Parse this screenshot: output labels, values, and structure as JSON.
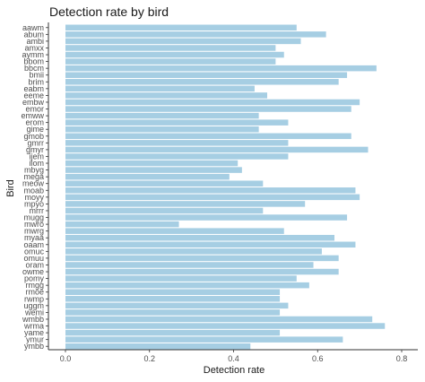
{
  "chart_data": {
    "type": "bar",
    "orientation": "horizontal",
    "title": "Detection rate by bird",
    "xlabel": "Detection rate",
    "ylabel": "Bird",
    "xlim": [
      0,
      0.8
    ],
    "xticks": [
      "0.0",
      "0.2",
      "0.4",
      "0.6",
      "0.8"
    ],
    "grid": false,
    "bar_color": "#a6cee3",
    "categories": [
      "aawm",
      "abum",
      "ambi",
      "amxx",
      "aymm",
      "bbom",
      "bbcm",
      "bmii",
      "brim",
      "eabm",
      "eeme",
      "embw",
      "emor",
      "emww",
      "erom",
      "gime",
      "gmob",
      "gmrr",
      "gmyr",
      "ijem",
      "ilom",
      "mbyg",
      "mega",
      "meow",
      "moab",
      "moyy",
      "mpyo",
      "mrrr",
      "mugg",
      "mwro",
      "mwrg",
      "myaa",
      "oaam",
      "omuc",
      "omuu",
      "oram",
      "owme",
      "pomy",
      "rmgg",
      "rmoe",
      "rwmp",
      "uggm",
      "wemi",
      "wmbb",
      "wrma",
      "yame",
      "ymur",
      "ymbb"
    ],
    "values": [
      0.55,
      0.62,
      0.56,
      0.5,
      0.52,
      0.5,
      0.74,
      0.67,
      0.65,
      0.45,
      0.48,
      0.7,
      0.68,
      0.46,
      0.53,
      0.46,
      0.68,
      0.53,
      0.72,
      0.53,
      0.41,
      0.42,
      0.39,
      0.47,
      0.69,
      0.7,
      0.57,
      0.47,
      0.67,
      0.27,
      0.52,
      0.64,
      0.69,
      0.61,
      0.65,
      0.59,
      0.65,
      0.55,
      0.58,
      0.51,
      0.51,
      0.53,
      0.51,
      0.73,
      0.76,
      0.51,
      0.66,
      0.44
    ]
  }
}
